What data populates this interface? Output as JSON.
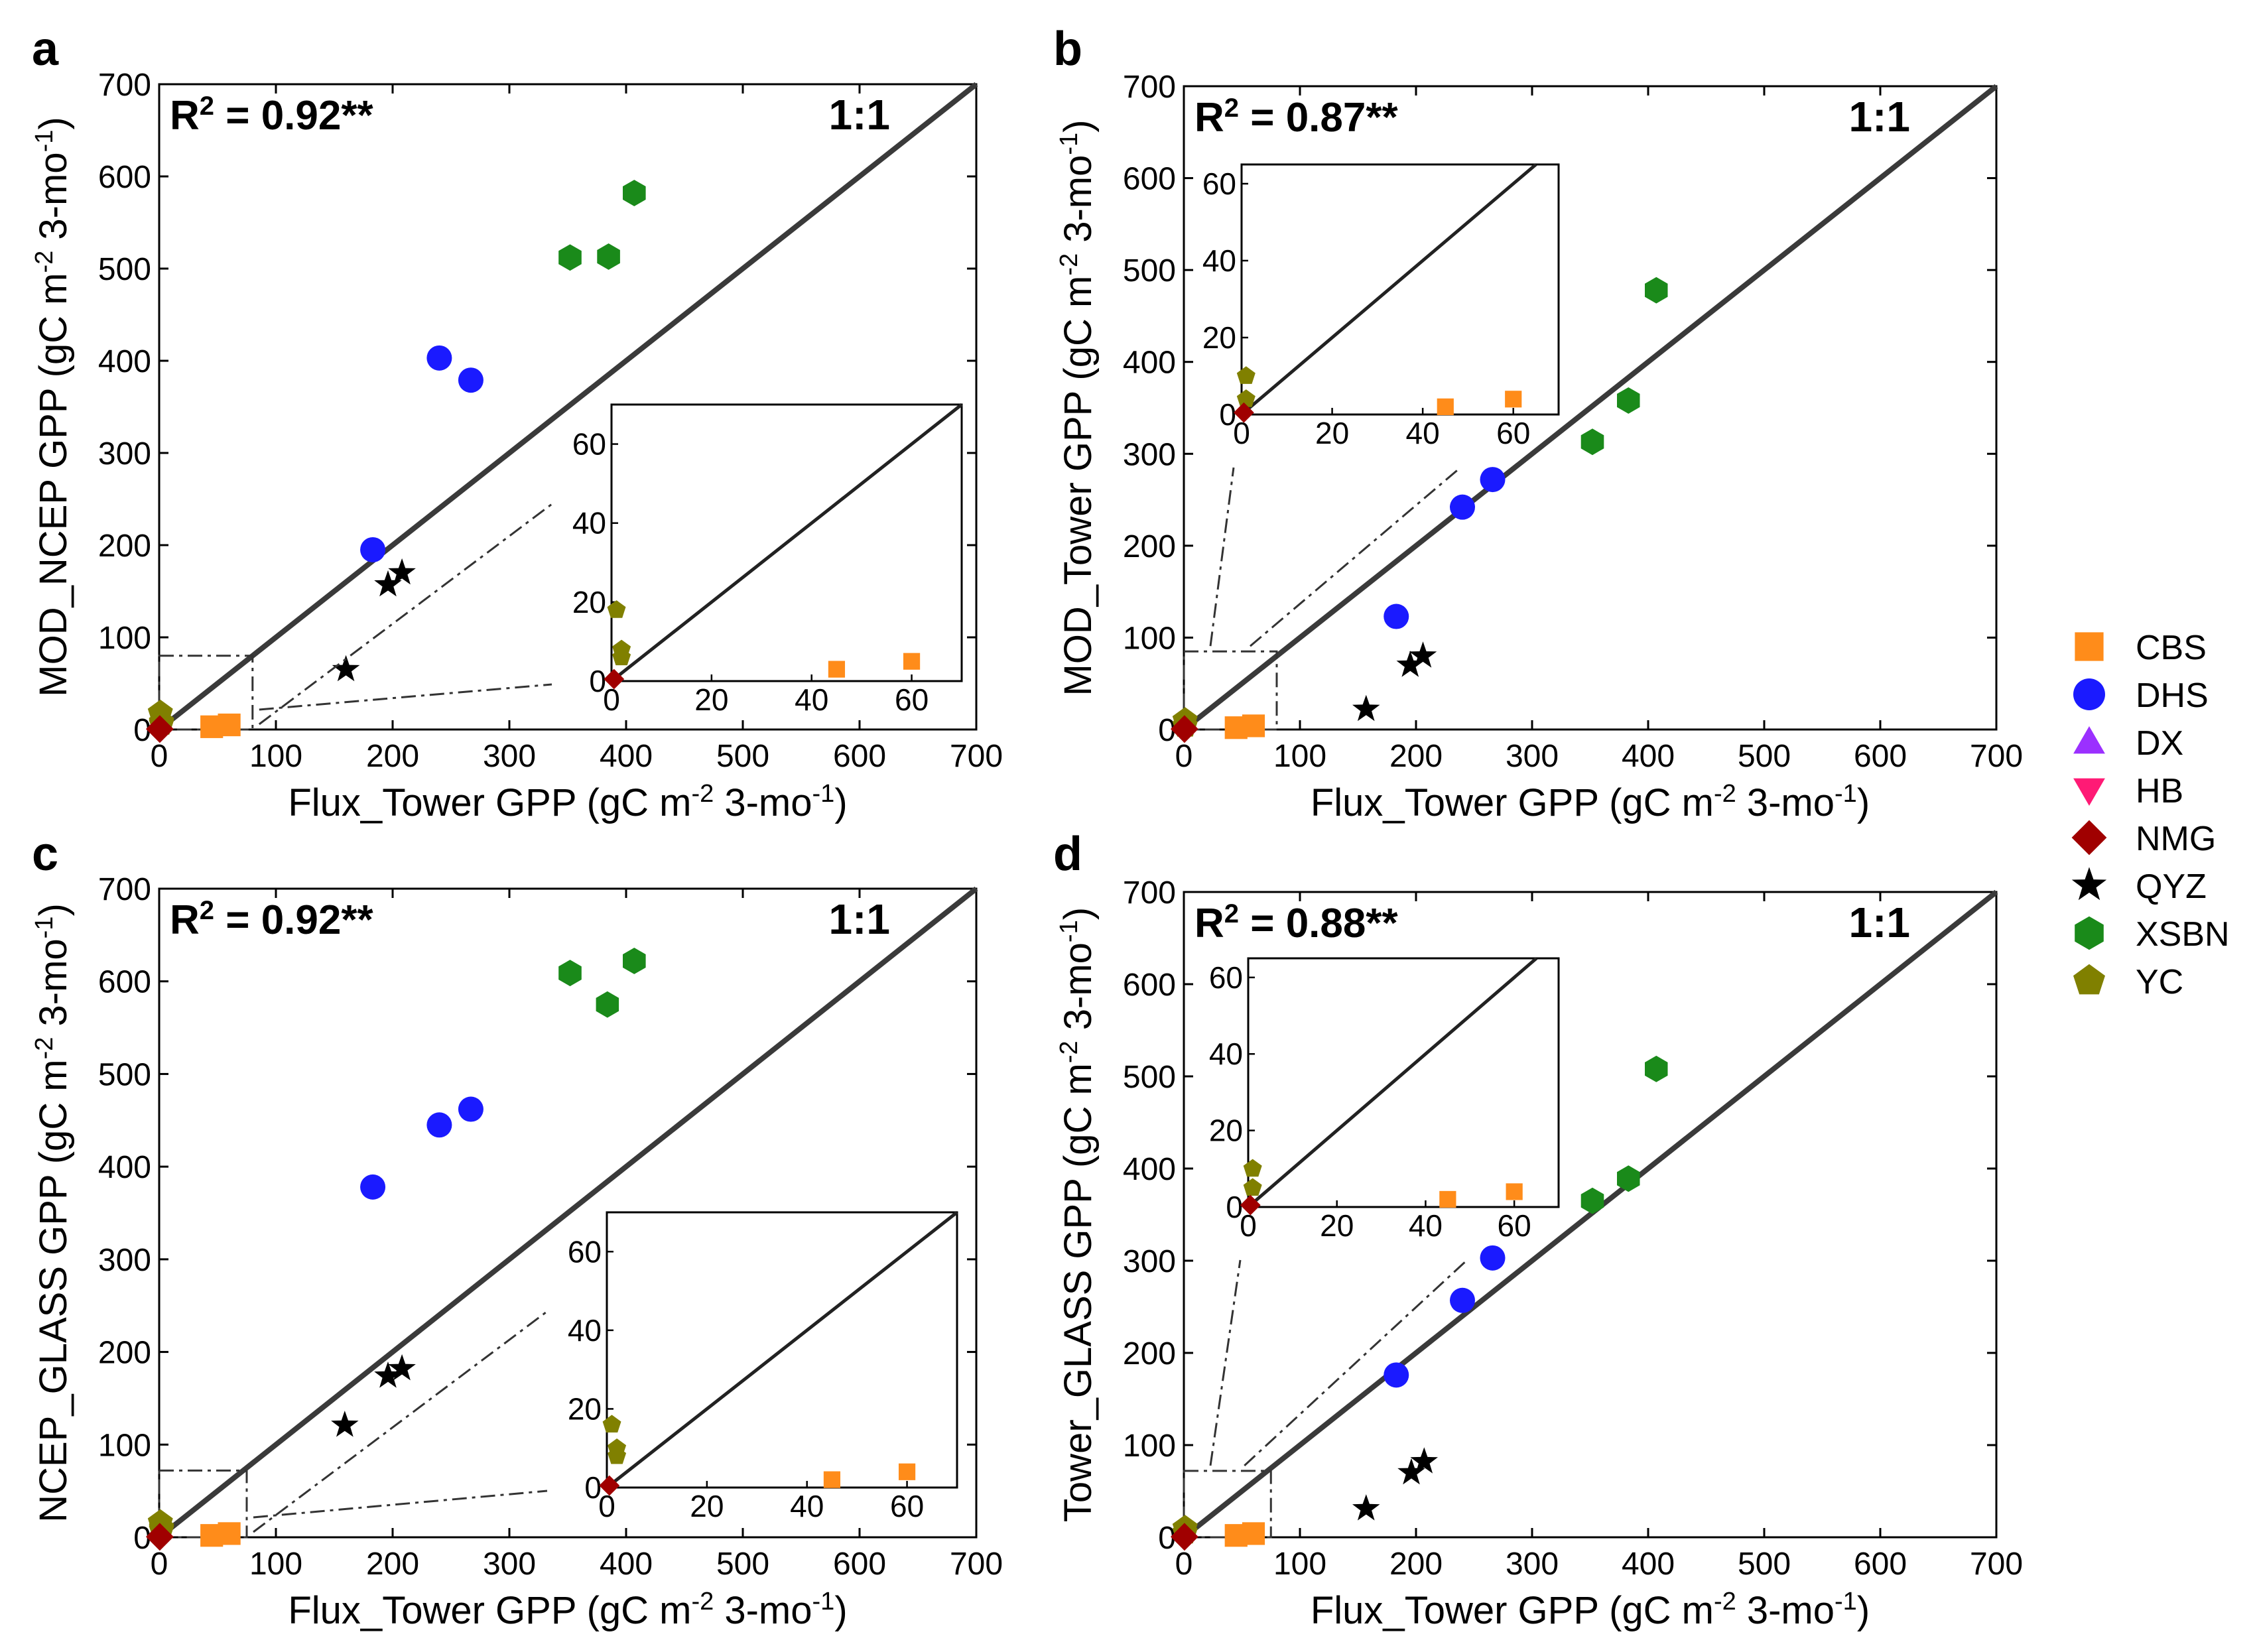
{
  "colors": {
    "CBS": "#ff8c1a",
    "DHS": "#1a1aff",
    "DX": "#9b30ff",
    "HB": "#ff1a75",
    "NMG": "#a00000",
    "QYZ": "#000000",
    "XSBN": "#1a8a1a",
    "YC": "#808000"
  },
  "legend": [
    {
      "name": "CBS",
      "marker": "square"
    },
    {
      "name": "DHS",
      "marker": "circle"
    },
    {
      "name": "DX",
      "marker": "triangle-up"
    },
    {
      "name": "HB",
      "marker": "triangle-down"
    },
    {
      "name": "NMG",
      "marker": "diamond"
    },
    {
      "name": "QYZ",
      "marker": "star"
    },
    {
      "name": "XSBN",
      "marker": "hexagon"
    },
    {
      "name": "YC",
      "marker": "pentagon"
    }
  ],
  "chart_data": [
    {
      "panel": "a",
      "type": "scatter",
      "r2_label": "R",
      "r2_sup": "2",
      "r2_value": " = 0.92**",
      "oneone_label": "1:1",
      "xlabel_parts": [
        "Flux_Tower GPP (gC m",
        "-2",
        " 3-mo",
        "-1",
        ")"
      ],
      "ylabel_parts": [
        "MOD_NCEP GPP (gC m",
        "-2",
        " 3-mo",
        "-1",
        ")"
      ],
      "xlim": [
        0,
        700
      ],
      "ylim": [
        0,
        700
      ],
      "xticks": [
        "0",
        "100",
        "200",
        "300",
        "400",
        "500",
        "600",
        "700"
      ],
      "yticks": [
        "0",
        "100",
        "200",
        "300",
        "400",
        "500",
        "600",
        "700"
      ],
      "zoom_box": [
        0,
        80,
        0,
        80
      ],
      "points": [
        {
          "site": "CBS",
          "x": 45,
          "y": 3
        },
        {
          "site": "CBS",
          "x": 60,
          "y": 5
        },
        {
          "site": "YC",
          "x": 1,
          "y": 18
        },
        {
          "site": "YC",
          "x": 2,
          "y": 6
        },
        {
          "site": "YC",
          "x": 2,
          "y": 8
        },
        {
          "site": "NMG",
          "x": 0.5,
          "y": 0.5
        },
        {
          "site": "DHS",
          "x": 183,
          "y": 195
        },
        {
          "site": "DHS",
          "x": 240,
          "y": 403
        },
        {
          "site": "DHS",
          "x": 267,
          "y": 379
        },
        {
          "site": "QYZ",
          "x": 160,
          "y": 65
        },
        {
          "site": "QYZ",
          "x": 196,
          "y": 157
        },
        {
          "site": "QYZ",
          "x": 208,
          "y": 170
        },
        {
          "site": "XSBN",
          "x": 352,
          "y": 512
        },
        {
          "site": "XSBN",
          "x": 385,
          "y": 513
        },
        {
          "site": "XSBN",
          "x": 407,
          "y": 582
        }
      ],
      "inset": {
        "xlim": [
          0,
          70
        ],
        "ylim": [
          0,
          70
        ],
        "xticks": [
          "0",
          "20",
          "40",
          "60"
        ],
        "yticks": [
          "0",
          "20",
          "40",
          "60"
        ]
      }
    },
    {
      "panel": "b",
      "type": "scatter",
      "r2_label": "R",
      "r2_sup": "2",
      "r2_value": " = 0.87**",
      "oneone_label": "1:1",
      "xlabel_parts": [
        "Flux_Tower GPP (gC m",
        "-2",
        " 3-mo",
        "-1",
        ")"
      ],
      "ylabel_parts": [
        "MOD_Tower GPP (gC m",
        "-2",
        " 3-mo",
        "-1",
        ")"
      ],
      "xlim": [
        0,
        700
      ],
      "ylim": [
        0,
        700
      ],
      "xticks": [
        "0",
        "100",
        "200",
        "300",
        "400",
        "500",
        "600",
        "700"
      ],
      "yticks": [
        "0",
        "100",
        "200",
        "300",
        "400",
        "500",
        "600",
        "700"
      ],
      "zoom_box": [
        0,
        80,
        0,
        85
      ],
      "points": [
        {
          "site": "CBS",
          "x": 45,
          "y": 2
        },
        {
          "site": "CBS",
          "x": 60,
          "y": 4
        },
        {
          "site": "YC",
          "x": 1,
          "y": 10
        },
        {
          "site": "YC",
          "x": 1,
          "y": 4
        },
        {
          "site": "NMG",
          "x": 0.5,
          "y": 0.5
        },
        {
          "site": "DHS",
          "x": 183,
          "y": 123
        },
        {
          "site": "DHS",
          "x": 240,
          "y": 242
        },
        {
          "site": "DHS",
          "x": 266,
          "y": 272
        },
        {
          "site": "QYZ",
          "x": 157,
          "y": 22
        },
        {
          "site": "QYZ",
          "x": 195,
          "y": 70
        },
        {
          "site": "QYZ",
          "x": 206,
          "y": 80
        },
        {
          "site": "XSBN",
          "x": 352,
          "y": 313
        },
        {
          "site": "XSBN",
          "x": 383,
          "y": 358
        },
        {
          "site": "XSBN",
          "x": 407,
          "y": 478
        }
      ],
      "inset": {
        "xlim": [
          0,
          70
        ],
        "ylim": [
          0,
          65
        ],
        "xticks": [
          "0",
          "20",
          "40",
          "60"
        ],
        "yticks": [
          "0",
          "20",
          "40",
          "60"
        ]
      }
    },
    {
      "panel": "c",
      "type": "scatter",
      "r2_label": "R",
      "r2_sup": "2",
      "r2_value": " = 0.92**",
      "oneone_label": "1:1",
      "xlabel_parts": [
        "Flux_Tower GPP (gC m",
        "-2",
        " 3-mo",
        "-1",
        ")"
      ],
      "ylabel_parts": [
        "NCEP_GLASS GPP (gC m",
        "-2",
        " 3-mo",
        "-1",
        ")"
      ],
      "xlim": [
        0,
        700
      ],
      "ylim": [
        0,
        700
      ],
      "xticks": [
        "0",
        "100",
        "200",
        "300",
        "400",
        "500",
        "600",
        "700"
      ],
      "yticks": [
        "0",
        "100",
        "200",
        "300",
        "400",
        "500",
        "600",
        "700"
      ],
      "zoom_box": [
        0,
        75,
        0,
        72
      ],
      "points": [
        {
          "site": "CBS",
          "x": 45,
          "y": 2
        },
        {
          "site": "CBS",
          "x": 60,
          "y": 4
        },
        {
          "site": "YC",
          "x": 1,
          "y": 16
        },
        {
          "site": "YC",
          "x": 2,
          "y": 8
        },
        {
          "site": "YC",
          "x": 2,
          "y": 10
        },
        {
          "site": "NMG",
          "x": 0.5,
          "y": 0.5
        },
        {
          "site": "DHS",
          "x": 183,
          "y": 378
        },
        {
          "site": "DHS",
          "x": 240,
          "y": 445
        },
        {
          "site": "DHS",
          "x": 267,
          "y": 462
        },
        {
          "site": "QYZ",
          "x": 159,
          "y": 121
        },
        {
          "site": "QYZ",
          "x": 196,
          "y": 174
        },
        {
          "site": "QYZ",
          "x": 208,
          "y": 182
        },
        {
          "site": "XSBN",
          "x": 352,
          "y": 609
        },
        {
          "site": "XSBN",
          "x": 384,
          "y": 575
        },
        {
          "site": "XSBN",
          "x": 407,
          "y": 622
        }
      ],
      "inset": {
        "xlim": [
          0,
          70
        ],
        "ylim": [
          0,
          70
        ],
        "xticks": [
          "0",
          "20",
          "40",
          "60"
        ],
        "yticks": [
          "0",
          "20",
          "40",
          "60"
        ]
      }
    },
    {
      "panel": "d",
      "type": "scatter",
      "r2_label": "R",
      "r2_sup": "2",
      "r2_value": " = 0.88**",
      "oneone_label": "1:1",
      "xlabel_parts": [
        "Flux_Tower GPP (gC m",
        "-2",
        " 3-mo",
        "-1",
        ")"
      ],
      "ylabel_parts": [
        "Tower_GLASS GPP (gC m",
        "-2",
        " 3-mo",
        "-1",
        ")"
      ],
      "xlim": [
        0,
        700
      ],
      "ylim": [
        0,
        700
      ],
      "xticks": [
        "0",
        "100",
        "200",
        "300",
        "400",
        "500",
        "600",
        "700"
      ],
      "yticks": [
        "0",
        "100",
        "200",
        "300",
        "400",
        "500",
        "600",
        "700"
      ],
      "zoom_box": [
        0,
        75,
        0,
        72
      ],
      "points": [
        {
          "site": "CBS",
          "x": 45,
          "y": 2
        },
        {
          "site": "CBS",
          "x": 60,
          "y": 4
        },
        {
          "site": "YC",
          "x": 1,
          "y": 10
        },
        {
          "site": "YC",
          "x": 1,
          "y": 5
        },
        {
          "site": "NMG",
          "x": 0.5,
          "y": 0.5
        },
        {
          "site": "DHS",
          "x": 183,
          "y": 176
        },
        {
          "site": "DHS",
          "x": 240,
          "y": 257
        },
        {
          "site": "DHS",
          "x": 266,
          "y": 303
        },
        {
          "site": "QYZ",
          "x": 157,
          "y": 31
        },
        {
          "site": "QYZ",
          "x": 196,
          "y": 70
        },
        {
          "site": "QYZ",
          "x": 207,
          "y": 82
        },
        {
          "site": "XSBN",
          "x": 352,
          "y": 365
        },
        {
          "site": "XSBN",
          "x": 383,
          "y": 389
        },
        {
          "site": "XSBN",
          "x": 407,
          "y": 508
        }
      ],
      "inset": {
        "xlim": [
          0,
          70
        ],
        "ylim": [
          0,
          65
        ],
        "xticks": [
          "0",
          "20",
          "40",
          "60"
        ],
        "yticks": [
          "0",
          "20",
          "40",
          "60"
        ]
      }
    }
  ]
}
